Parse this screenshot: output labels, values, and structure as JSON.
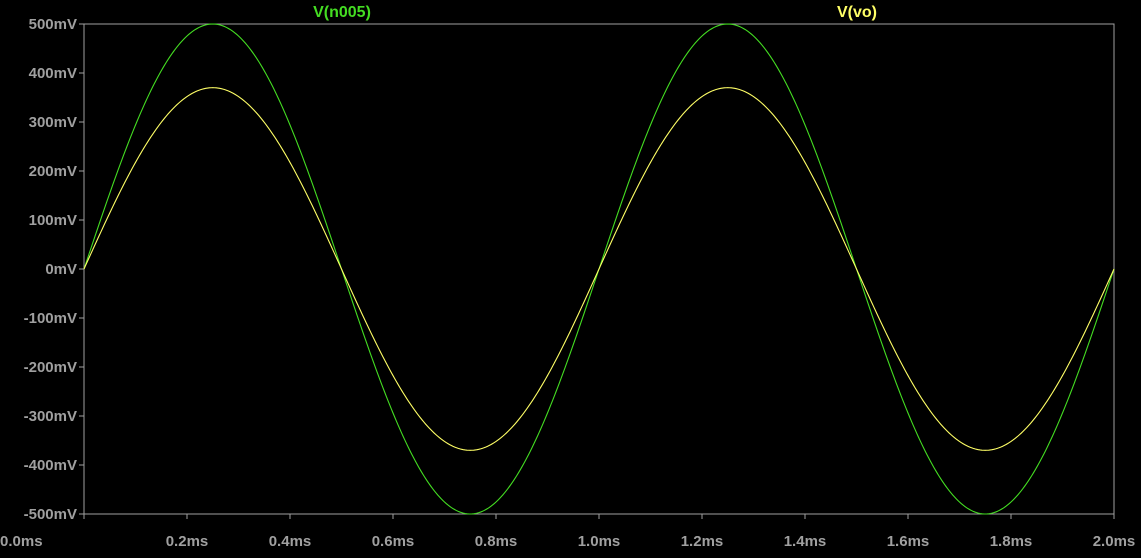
{
  "chart_data": {
    "type": "line",
    "title": "",
    "xlabel": "",
    "ylabel": "",
    "xlim": [
      0,
      2.0
    ],
    "ylim": [
      -500,
      500
    ],
    "x_unit": "ms",
    "y_unit": "mV",
    "grid": false,
    "background": "#000000",
    "axis_color": "#a0a0a0",
    "tick_label_color": "#a0a0a0",
    "x_ticks": [
      0.0,
      0.2,
      0.4,
      0.6,
      0.8,
      1.0,
      1.2,
      1.4,
      1.6,
      1.8,
      2.0
    ],
    "x_tick_labels": [
      "0.0ms",
      "0.2ms",
      "0.4ms",
      "0.6ms",
      "0.8ms",
      "1.0ms",
      "1.2ms",
      "1.4ms",
      "1.6ms",
      "1.8ms",
      "2.0ms"
    ],
    "y_ticks": [
      500,
      400,
      300,
      200,
      100,
      0,
      -100,
      -200,
      -300,
      -400,
      -500
    ],
    "y_tick_labels": [
      "500mV",
      "400mV",
      "300mV",
      "200mV",
      "100mV",
      "0mV",
      "-100mV",
      "-200mV",
      "-300mV",
      "-400mV",
      "-500mV"
    ],
    "x": [
      0.0,
      0.05,
      0.1,
      0.15,
      0.2,
      0.25,
      0.3,
      0.35,
      0.4,
      0.45,
      0.5,
      0.55,
      0.6,
      0.65,
      0.7,
      0.75,
      0.8,
      0.85,
      0.9,
      0.95,
      1.0,
      1.05,
      1.1,
      1.15,
      1.2,
      1.25,
      1.3,
      1.35,
      1.4,
      1.45,
      1.5,
      1.55,
      1.6,
      1.65,
      1.7,
      1.75,
      1.8,
      1.85,
      1.9,
      1.95,
      2.0
    ],
    "series": [
      {
        "name": "V(n005)",
        "color": "#44dd22",
        "values": [
          0,
          155,
          294,
          405,
          476,
          500,
          476,
          405,
          294,
          155,
          0,
          -155,
          -294,
          -405,
          -476,
          -500,
          -476,
          -405,
          -294,
          -155,
          0,
          155,
          294,
          405,
          476,
          500,
          476,
          405,
          294,
          155,
          0,
          -155,
          -294,
          -405,
          -476,
          -500,
          -476,
          -405,
          -294,
          -155,
          0
        ]
      },
      {
        "name": "V(vo)",
        "color": "#ffff66",
        "values": [
          0,
          114,
          217,
          299,
          352,
          370,
          352,
          299,
          217,
          114,
          0,
          -114,
          -217,
          -299,
          -352,
          -370,
          -352,
          -299,
          -217,
          -114,
          0,
          114,
          217,
          299,
          352,
          370,
          352,
          299,
          217,
          114,
          0,
          -114,
          -217,
          -299,
          -352,
          -370,
          -352,
          -299,
          -217,
          -114,
          0
        ]
      }
    ]
  }
}
